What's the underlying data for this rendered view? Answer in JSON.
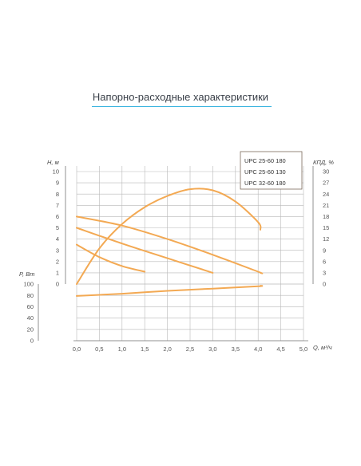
{
  "page_title": "Напорно-расходные характеристики",
  "chart_data": {
    "type": "line",
    "xlabel": "Q, м³/ч",
    "xlim": [
      0,
      5
    ],
    "x_ticks": [
      "0,0",
      "0,5",
      "1,0",
      "1,5",
      "2,0",
      "2,5",
      "3,0",
      "3,5",
      "4,0",
      "4,5",
      "5,0"
    ],
    "head_axis": {
      "label": "H, м",
      "lim": [
        0,
        10
      ],
      "ticks": [
        "0",
        "1",
        "2",
        "3",
        "4",
        "5",
        "6",
        "7",
        "8",
        "9",
        "10"
      ]
    },
    "eff_axis": {
      "label": "КПД, %",
      "lim": [
        0,
        30
      ],
      "ticks": [
        "0",
        "3",
        "6",
        "9",
        "12",
        "15",
        "18",
        "21",
        "24",
        "27",
        "30"
      ]
    },
    "power_axis": {
      "label": "P, Вт",
      "lim": [
        0,
        100
      ],
      "ticks": [
        "0",
        "20",
        "40",
        "60",
        "80",
        "100"
      ]
    },
    "legend": [
      "UPC 25-60 180",
      "UPC 25-60 130",
      "UPC 32-60 180"
    ],
    "grid": true,
    "series": [
      {
        "name": "",
        "axis": "head",
        "color": "#f3a953",
        "x": [
          0,
          1.0,
          2.0,
          3.0,
          4.0,
          4.05
        ],
        "y": [
          6.0,
          5.2,
          4.0,
          2.6,
          1.1,
          1.0
        ]
      },
      {
        "name": "",
        "axis": "head",
        "color": "#f3a953",
        "x": [
          0,
          1.0,
          2.0,
          3.0
        ],
        "y": [
          5.0,
          3.6,
          2.3,
          1.0
        ]
      },
      {
        "name": "",
        "axis": "head",
        "color": "#f3a953",
        "x": [
          0,
          0.5,
          1.0,
          1.5
        ],
        "y": [
          3.5,
          2.4,
          1.6,
          1.1
        ]
      },
      {
        "name": "",
        "axis": "efficiency",
        "color": "#f3a953",
        "x": [
          0,
          0.5,
          1.0,
          1.5,
          2.0,
          2.5,
          3.0,
          3.5,
          4.0,
          4.05
        ],
        "y": [
          0,
          9.5,
          16.0,
          20.5,
          23.5,
          25.3,
          25.0,
          22.0,
          16.5,
          14.5
        ]
      },
      {
        "name": "",
        "axis": "power",
        "color": "#f3a953",
        "x": [
          0,
          1.0,
          2.0,
          3.0,
          4.0,
          4.05
        ],
        "y": [
          79,
          83,
          88,
          92,
          96,
          97
        ]
      }
    ]
  }
}
